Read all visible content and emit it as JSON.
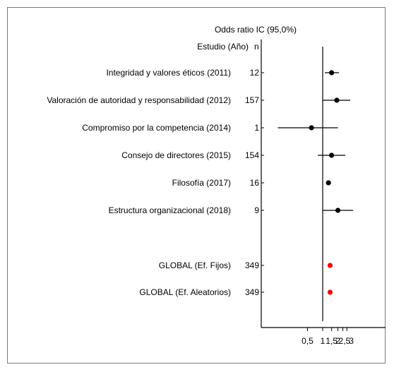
{
  "chart_data": {
    "type": "forest",
    "title": "Odds ratio IC  (95,0%)",
    "header": {
      "study": "Estudio  (Año)",
      "n": "n"
    },
    "x_scale": "log",
    "x_ticks": [
      {
        "value": 0.5,
        "label": "0,5"
      },
      {
        "value": 1,
        "label": "1"
      },
      {
        "value": 1.5,
        "label": "1,5"
      },
      {
        "value": 2,
        "label": "2"
      },
      {
        "value": 2.5,
        "label": "2,5"
      },
      {
        "value": 3,
        "label": "3"
      }
    ],
    "reference_line": 1,
    "studies": [
      {
        "label": "Integridad y valores éticos  (2011)",
        "n": "12",
        "or": 1.5,
        "lower": 1.1,
        "upper": 2.1,
        "color": "#000000"
      },
      {
        "label": "Valoración de autoridad y responsabilidad  (2012)",
        "n": "157",
        "or": 1.9,
        "lower": 1.0,
        "upper": 3.5,
        "color": "#000000"
      },
      {
        "label": "Compromiso por la competencia  (2014)",
        "n": "1",
        "or": 0.6,
        "lower": 0.13,
        "upper": 2.0,
        "color": "#000000"
      },
      {
        "label": "Consejo de directores  (2015)",
        "n": "154",
        "or": 1.5,
        "lower": 0.8,
        "upper": 2.8,
        "color": "#000000"
      },
      {
        "label": "Filosofía  (2017)",
        "n": "16",
        "or": 1.3,
        "lower": 1.2,
        "upper": 1.4,
        "color": "#000000"
      },
      {
        "label": "Estructura organizacional  (2018)",
        "n": "9",
        "or": 2.0,
        "lower": 1.0,
        "upper": 4.0,
        "color": "#000000"
      }
    ],
    "pooled": [
      {
        "label": "GLOBAL  (Ef. Fijos)",
        "n": "349",
        "or": 1.4,
        "lower": 1.33,
        "upper": 1.48,
        "color": "#ff0000"
      },
      {
        "label": "GLOBAL  (Ef. Aleatorios)",
        "n": "349",
        "or": 1.4,
        "lower": 1.33,
        "upper": 1.48,
        "color": "#ff0000"
      }
    ]
  }
}
